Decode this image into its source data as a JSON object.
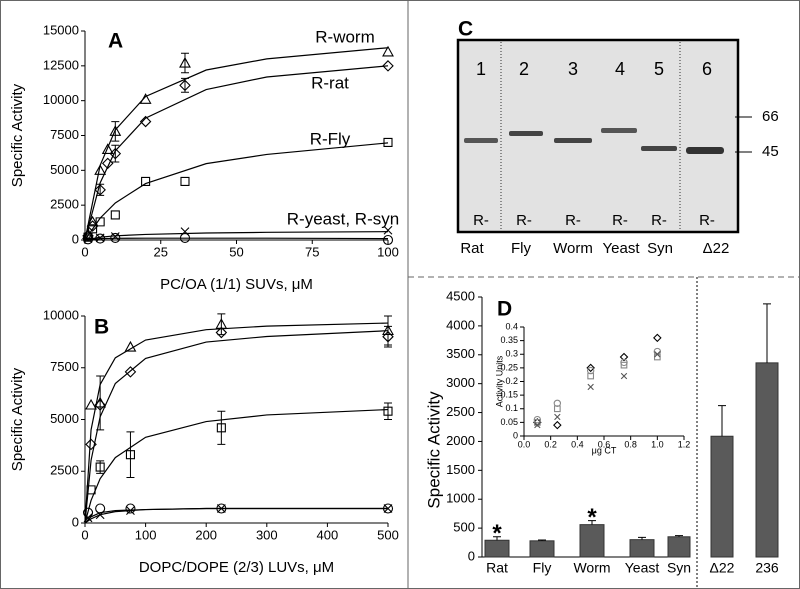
{
  "chart_data": [
    {
      "type": "scatter",
      "panel_label": "A",
      "xlabel": "PC/OA (1/1) SUVs, μM",
      "ylabel": "Specific Activity",
      "xlim": [
        0,
        100
      ],
      "ylim": [
        0,
        15000
      ],
      "xticks": [
        0,
        25,
        50,
        75,
        100
      ],
      "yticks": [
        0,
        2500,
        5000,
        7500,
        10000,
        12500,
        15000
      ],
      "annotations": [
        "R-worm",
        "R-rat",
        "R-Fly",
        "R-yeast, R-syn"
      ],
      "series": [
        {
          "marker": "triangle",
          "color": "#000000",
          "x": [
            1,
            2.5,
            5,
            7.5,
            10,
            20,
            33,
            100
          ],
          "values": [
            400,
            1300,
            5000,
            6500,
            7800,
            10100,
            12700,
            13500
          ],
          "errors": [
            null,
            null,
            null,
            null,
            700,
            null,
            700,
            null
          ],
          "fit": {
            "x": [
              0,
              5,
              10,
              20,
              40,
              60,
              100
            ],
            "values": [
              0,
              5360,
              7900,
              10300,
              12200,
              13000,
              13800
            ]
          }
        },
        {
          "marker": "diamond",
          "color": "#000000",
          "x": [
            1,
            2.5,
            5,
            7.5,
            10,
            20,
            33,
            100
          ],
          "values": [
            300,
            1000,
            3600,
            5500,
            6200,
            8500,
            11100,
            12500
          ],
          "errors": [
            null,
            null,
            400,
            null,
            600,
            null,
            500,
            null
          ],
          "fit": {
            "x": [
              0,
              5,
              10,
              20,
              40,
              60,
              100
            ],
            "values": [
              0,
              4100,
              6400,
              8750,
              10800,
              11700,
              12500
            ]
          }
        },
        {
          "marker": "square",
          "color": "#000000",
          "x": [
            1,
            2.5,
            5,
            10,
            20,
            33,
            100
          ],
          "values": [
            200,
            800,
            1300,
            1800,
            4200,
            4200,
            7000
          ],
          "errors": [
            null,
            null,
            null,
            null,
            null,
            null,
            null
          ],
          "fit": {
            "x": [
              0,
              5,
              10,
              20,
              40,
              60,
              100
            ],
            "values": [
              0,
              1570,
              2660,
              4050,
              5480,
              6140,
              6970
            ]
          }
        },
        {
          "marker": "x",
          "color": "#000000",
          "x": [
            1,
            5,
            10,
            33,
            100
          ],
          "values": [
            100,
            150,
            250,
            600,
            700
          ],
          "errors": [
            null,
            null,
            null,
            null,
            null
          ],
          "fit": {
            "x": [
              0,
              5,
              10,
              20,
              40,
              60,
              100
            ],
            "values": [
              0,
              200,
              300,
              400,
              500,
              550,
              600
            ]
          }
        },
        {
          "marker": "circle",
          "color": "#000000",
          "x": [
            1,
            5,
            10,
            33,
            100
          ],
          "values": [
            50,
            100,
            150,
            150,
            0
          ],
          "errors": [
            null,
            null,
            null,
            null,
            null
          ],
          "fit": {
            "x": [
              0,
              5,
              10,
              20,
              40,
              60,
              100
            ],
            "values": [
              0,
              100,
              120,
              130,
              130,
              130,
              100
            ]
          }
        }
      ]
    },
    {
      "type": "scatter",
      "panel_label": "B",
      "xlabel": "DOPC/DOPE (2/3) LUVs, μM",
      "ylabel": "Specific Activity",
      "xlim": [
        0,
        500
      ],
      "ylim": [
        0,
        10000
      ],
      "xticks": [
        0,
        100,
        200,
        300,
        400,
        500
      ],
      "yticks": [
        0,
        2500,
        5000,
        7500,
        10000
      ],
      "series": [
        {
          "marker": "triangle",
          "color": "#000000",
          "x": [
            10,
            25,
            75,
            225,
            500
          ],
          "values": [
            5700,
            5800,
            8500,
            9600,
            9300
          ],
          "errors": [
            null,
            1300,
            null,
            500,
            700
          ],
          "fit": {
            "x": [
              0,
              10,
              25,
              50,
              100,
              200,
              300,
              500
            ],
            "values": [
              0,
              4500,
              6690,
              7980,
              8840,
              9340,
              9510,
              9660
            ]
          }
        },
        {
          "marker": "diamond",
          "color": "#000000",
          "x": [
            10,
            25,
            75,
            225,
            500
          ],
          "values": [
            3800,
            5700,
            7300,
            9200,
            9000
          ],
          "errors": [
            null,
            null,
            null,
            null,
            500
          ],
          "fit": {
            "x": [
              0,
              10,
              25,
              50,
              100,
              200,
              300,
              500
            ],
            "values": [
              0,
              3030,
              5130,
              6740,
              7950,
              8740,
              9010,
              9290
            ]
          }
        },
        {
          "marker": "square",
          "color": "#000000",
          "x": [
            10,
            25,
            75,
            225,
            500
          ],
          "values": [
            1600,
            2700,
            3300,
            4600,
            5400
          ],
          "errors": [
            null,
            300,
            1100,
            800,
            400
          ],
          "fit": {
            "x": [
              0,
              10,
              25,
              50,
              100,
              200,
              300,
              500
            ],
            "values": [
              0,
              1090,
              2140,
              3160,
              4140,
              4900,
              5220,
              5480
            ]
          }
        },
        {
          "marker": "circle",
          "color": "#000000",
          "x": [
            5,
            25,
            75,
            225,
            500
          ],
          "values": [
            500,
            700,
            700,
            700,
            700
          ],
          "errors": [
            null,
            null,
            null,
            null,
            null
          ],
          "fit": {
            "x": [
              0,
              10,
              25,
              50,
              100,
              200,
              300,
              500
            ],
            "values": [
              0,
              300,
              500,
              600,
              650,
              700,
              700,
              700
            ]
          }
        },
        {
          "marker": "x",
          "color": "#000000",
          "x": [
            5,
            25,
            75,
            225,
            500
          ],
          "values": [
            250,
            400,
            600,
            700,
            700
          ],
          "errors": [
            null,
            null,
            null,
            null,
            null
          ],
          "fit": {
            "x": [
              0,
              10,
              25,
              50,
              100,
              200,
              300,
              500
            ],
            "values": [
              0,
              200,
              400,
              550,
              650,
              700,
              700,
              700
            ]
          }
        }
      ]
    },
    {
      "type": "bar",
      "panel_label": "D",
      "ylabel": "Specific Activity",
      "color": "#5a5a5a",
      "ylim": [
        0,
        4500
      ],
      "yticks": [
        0,
        500,
        1000,
        1500,
        2000,
        2500,
        3000,
        3500,
        4000,
        4500
      ],
      "categories": [
        "Rat",
        "Fly",
        "Worm",
        "Yeast",
        "Syn",
        "Δ22",
        "236"
      ],
      "values": [
        290,
        280,
        560,
        300,
        350,
        2090,
        3360
      ],
      "errors": [
        60,
        15,
        70,
        40,
        20,
        530,
        1020
      ],
      "annotations": [
        {
          "text": "*",
          "category": "Rat"
        },
        {
          "text": "*",
          "category": "Worm"
        }
      ]
    },
    {
      "type": "scatter",
      "xlabel": "μg CT",
      "ylabel": "Activity Units",
      "xlim": [
        0,
        1.2
      ],
      "ylim": [
        0,
        0.4
      ],
      "xticks": [
        {
          "value": 0,
          "label": "0.0"
        },
        0.2,
        0.4,
        0.6,
        0.8,
        {
          "value": 1,
          "label": "1.0"
        },
        1.2
      ],
      "yticks": [
        0,
        0.05,
        0.1,
        0.15,
        0.2,
        0.25,
        0.3,
        0.35,
        0.4
      ],
      "series": [
        {
          "marker": "diamond",
          "color": "#000000",
          "x": [
            0.1,
            0.25,
            0.5,
            0.75,
            1
          ],
          "values": [
            0.05,
            0.04,
            0.25,
            0.29,
            0.36
          ]
        },
        {
          "marker": "square",
          "color": "#888888",
          "x": [
            0.1,
            0.25,
            0.5,
            0.75,
            1
          ],
          "values": [
            0.05,
            0.1,
            0.22,
            0.26,
            0.29
          ]
        },
        {
          "marker": "circle",
          "color": "#888888",
          "x": [
            0.1,
            0.25,
            0.5,
            0.75,
            1
          ],
          "values": [
            0.06,
            0.12,
            0.24,
            0.27,
            0.31
          ]
        },
        {
          "marker": "x",
          "color": "#555555",
          "x": [
            0.1,
            0.25,
            0.5,
            0.75,
            1
          ],
          "values": [
            0.04,
            0.07,
            0.18,
            0.22,
            0.3
          ]
        }
      ]
    }
  ],
  "panel_c": {
    "label": "C",
    "lane_numbers": [
      "1",
      "2",
      "3",
      "4",
      "5",
      "6"
    ],
    "lane_prefix": "R-",
    "lanes": [
      "Rat",
      "Fly",
      "Worm",
      "Yeast",
      "Syn",
      "Δ22"
    ],
    "markers": [
      "66",
      "45"
    ]
  }
}
